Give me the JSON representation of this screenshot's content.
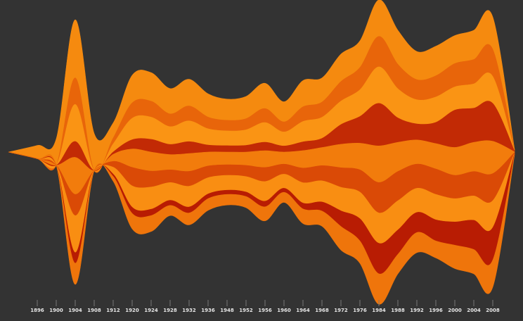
{
  "chart_data": {
    "type": "area",
    "layout": "streamgraph (stacked, centered baseline)",
    "x_axis": {
      "ticks": [
        "1896",
        "1900",
        "1904",
        "1908",
        "1912",
        "1920",
        "1924",
        "1928",
        "1932",
        "1936",
        "1948",
        "1952",
        "1956",
        "1960",
        "1964",
        "1968",
        "1972",
        "1976",
        "1984",
        "1988",
        "1992",
        "1996",
        "2000",
        "2004",
        "2008"
      ],
      "tick_values": [
        1896,
        1900,
        1904,
        1908,
        1912,
        1920,
        1924,
        1928,
        1932,
        1936,
        1948,
        1952,
        1956,
        1960,
        1964,
        1968,
        1972,
        1976,
        1984,
        1988,
        1992,
        1996,
        2000,
        2004,
        2008
      ],
      "range": [
        1896,
        2008
      ]
    },
    "grid": false,
    "legend": "none",
    "total_relative": [
      0.05,
      0.1,
      1.0,
      0.14,
      0.22,
      0.58,
      0.6,
      0.48,
      0.55,
      0.44,
      0.4,
      0.42,
      0.52,
      0.38,
      0.54,
      0.56,
      0.74,
      0.84,
      1.15,
      0.92,
      0.76,
      0.8,
      0.88,
      0.92,
      1.02
    ],
    "series": [
      {
        "color": "#F58A0F",
        "weights": [
          1.0,
          1.0,
          0.22,
          1.0,
          0.26,
          0.18,
          0.18,
          0.2,
          0.18,
          0.2,
          0.2,
          0.2,
          0.18,
          0.2,
          0.18,
          0.16,
          0.14,
          0.12,
          0.12,
          0.14,
          0.14,
          0.14,
          0.12,
          0.12,
          0.12
        ]
      },
      {
        "color": "#E8650A",
        "weights": [
          0.0,
          0.0,
          0.1,
          0.0,
          0.1,
          0.1,
          0.1,
          0.1,
          0.1,
          0.1,
          0.1,
          0.1,
          0.1,
          0.1,
          0.1,
          0.1,
          0.1,
          0.1,
          0.1,
          0.1,
          0.1,
          0.1,
          0.1,
          0.1,
          0.1
        ]
      },
      {
        "color": "#FA9414",
        "weights": [
          0.0,
          0.0,
          0.14,
          0.0,
          0.14,
          0.14,
          0.14,
          0.14,
          0.14,
          0.14,
          0.14,
          0.14,
          0.14,
          0.14,
          0.14,
          0.14,
          0.12,
          0.12,
          0.12,
          0.12,
          0.12,
          0.12,
          0.1,
          0.1,
          0.1
        ]
      },
      {
        "color": "#C22A05",
        "weights": [
          0.0,
          0.0,
          0.06,
          0.0,
          0.04,
          0.06,
          0.08,
          0.08,
          0.08,
          0.06,
          0.06,
          0.06,
          0.06,
          0.06,
          0.06,
          0.06,
          0.1,
          0.12,
          0.14,
          0.1,
          0.08,
          0.1,
          0.16,
          0.14,
          0.14
        ]
      },
      {
        "color": "#F27C0C",
        "weights": [
          0.0,
          0.0,
          0.14,
          0.0,
          0.12,
          0.12,
          0.12,
          0.12,
          0.12,
          0.12,
          0.12,
          0.12,
          0.12,
          0.12,
          0.12,
          0.12,
          0.12,
          0.12,
          0.12,
          0.12,
          0.12,
          0.12,
          0.12,
          0.12,
          0.12
        ]
      },
      {
        "color": "#DA4A06",
        "weights": [
          0.0,
          0.0,
          0.08,
          0.0,
          0.1,
          0.12,
          0.1,
          0.1,
          0.1,
          0.1,
          0.1,
          0.1,
          0.1,
          0.1,
          0.1,
          0.1,
          0.1,
          0.1,
          0.1,
          0.12,
          0.12,
          0.12,
          0.1,
          0.1,
          0.1
        ]
      },
      {
        "color": "#F98E12",
        "weights": [
          0.0,
          0.0,
          0.14,
          0.0,
          0.12,
          0.14,
          0.14,
          0.14,
          0.14,
          0.14,
          0.14,
          0.14,
          0.14,
          0.14,
          0.14,
          0.14,
          0.12,
          0.12,
          0.1,
          0.12,
          0.12,
          0.12,
          0.1,
          0.1,
          0.1
        ]
      },
      {
        "color": "#B81C03",
        "weights": [
          0.0,
          0.0,
          0.04,
          0.0,
          0.04,
          0.04,
          0.04,
          0.04,
          0.04,
          0.04,
          0.04,
          0.04,
          0.04,
          0.04,
          0.04,
          0.06,
          0.08,
          0.1,
          0.1,
          0.1,
          0.1,
          0.1,
          0.1,
          0.12,
          0.12
        ]
      },
      {
        "color": "#EF750B",
        "weights": [
          0.0,
          0.0,
          0.08,
          0.0,
          0.08,
          0.1,
          0.1,
          0.08,
          0.08,
          0.1,
          0.1,
          0.1,
          0.1,
          0.1,
          0.1,
          0.1,
          0.12,
          0.1,
          0.1,
          0.08,
          0.1,
          0.08,
          0.1,
          0.1,
          0.1
        ]
      }
    ]
  }
}
